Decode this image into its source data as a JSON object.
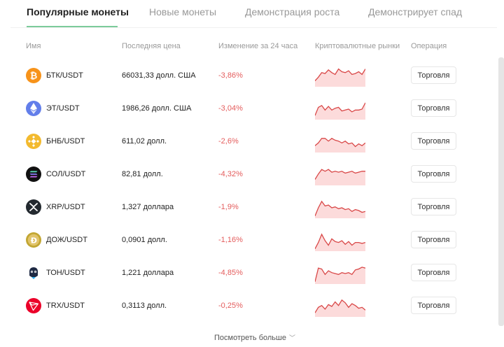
{
  "tabs": [
    {
      "label": "Популярные монеты"
    },
    {
      "label": "Новые монеты"
    },
    {
      "label": "Демонстрация роста"
    },
    {
      "label": "Демонстрирует спад"
    }
  ],
  "table": {
    "headers": {
      "name": "Имя",
      "last_price": "Последняя цена",
      "change_24h": "Изменение за 24 часа",
      "markets": "Криптовалютные рынки",
      "operation": "Операция"
    },
    "rows": [
      {
        "base": "БТК",
        "quote": "/USDT",
        "price": "66031,33 долл. США",
        "change": "-3,86%",
        "icon": "bitcoin-icon",
        "icon_color": "#f7931a",
        "trade": "Торговля"
      },
      {
        "base": "ЭТ",
        "quote": "/USDT",
        "price": "1986,26 долл. США",
        "change": "-3,04%",
        "icon": "ethereum-icon",
        "icon_color": "#627eea",
        "trade": "Торговля"
      },
      {
        "base": "БНБ",
        "quote": "/USDT",
        "price": "611,02 долл.",
        "change": "-2,6%",
        "icon": "bnb-icon",
        "icon_color": "#f3ba2f",
        "trade": "Торговля"
      },
      {
        "base": "СОЛ",
        "quote": "/USDT",
        "price": "82,81 долл.",
        "change": "-4,32%",
        "icon": "solana-icon",
        "icon_color": "#111111",
        "trade": "Торговля"
      },
      {
        "base": "XRP",
        "quote": "/USDT",
        "price": "1,327 доллара",
        "change": "-1,9%",
        "icon": "xrp-icon",
        "icon_color": "#23292f",
        "trade": "Торговля"
      },
      {
        "base": "ДОЖ",
        "quote": "/USDT",
        "price": "0,0901 долл.",
        "change": "-1,16%",
        "icon": "dogecoin-icon",
        "icon_color": "#c2a633",
        "trade": "Торговля"
      },
      {
        "base": "ТОН",
        "quote": "/USDT",
        "price": "1,221 доллара",
        "change": "-4,85%",
        "icon": "toncoin-icon",
        "icon_color": "#1f2a44",
        "trade": "Торговля"
      },
      {
        "base": "TRX",
        "quote": "/USDT",
        "price": "0,3113 долл.",
        "change": "-0,25%",
        "icon": "tron-icon",
        "icon_color": "#eb0029",
        "trade": "Торговля"
      }
    ]
  },
  "see_more": "Посмотреть больше",
  "colors": {
    "negative": "#e45c5c",
    "sparkline_line": "#d94848",
    "sparkline_fill": "#fbd5d5",
    "tab_underline": "#7ccb9a"
  }
}
